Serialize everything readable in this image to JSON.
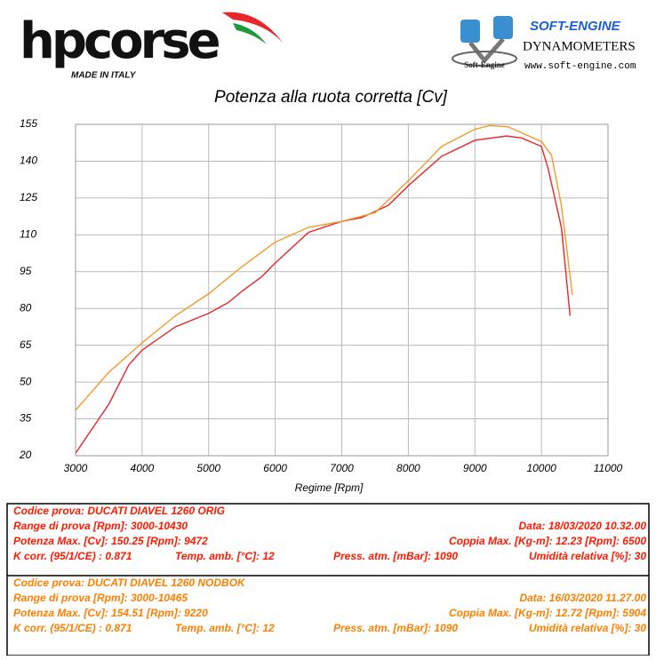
{
  "header": {
    "brand": "hpcorse",
    "brand_tagline": "MADE IN ITALY",
    "partner_logo": "SOFT-ENGINE",
    "partner_logo_small": "Soft-Engine",
    "partner_name": "DYNAMOMETERS",
    "partner_url": "www.soft-engine.com"
  },
  "chart_data": {
    "type": "line",
    "title": "Potenza alla ruota corretta [Cv]",
    "x_label": "Regime [Rpm]",
    "xlim": [
      3000,
      11000
    ],
    "xticks": [
      3000,
      4000,
      5000,
      6000,
      7000,
      8000,
      9000,
      10000,
      11000
    ],
    "ylim": [
      20,
      155
    ],
    "yticks": [
      20,
      35,
      50,
      65,
      80,
      95,
      110,
      125,
      140,
      155
    ],
    "grid": true,
    "series": [
      {
        "name": "DUCATI DIAVEL 1260 ORIG",
        "color": "#e8262b",
        "x": [
          3000,
          3500,
          3800,
          4000,
          4500,
          5000,
          5300,
          5500,
          5800,
          6000,
          6500,
          7000,
          7300,
          7700,
          8000,
          8500,
          9000,
          9472,
          9700,
          10000,
          10100,
          10300,
          10430
        ],
        "values": [
          21,
          41,
          57,
          63,
          72.5,
          78,
          82.5,
          87,
          93,
          98.5,
          111,
          115.5,
          117,
          122,
          130,
          142,
          148.5,
          150.25,
          149.5,
          146,
          137,
          113,
          77
        ]
      },
      {
        "name": "DUCATI DIAVEL 1260 NODBOK",
        "color": "#f39a2b",
        "x": [
          3000,
          3500,
          4000,
          4500,
          5000,
          5500,
          6000,
          6500,
          7000,
          7500,
          8000,
          8500,
          9000,
          9220,
          9500,
          10000,
          10150,
          10300,
          10465
        ],
        "values": [
          38.5,
          54,
          66,
          77,
          86,
          97,
          107,
          113,
          115.5,
          119,
          132,
          146,
          153,
          154.51,
          154,
          148,
          142.5,
          122,
          85.5
        ]
      }
    ]
  },
  "tests": [
    {
      "color": "#ff1a00",
      "rows": [
        [
          "Codice prova: DUCATI DIAVEL 1260 ORIG"
        ],
        [
          "Range di prova [Rpm]: 3000-10430",
          "Data: 18/03/2020   10.32.00"
        ],
        [
          "Potenza Max. [Cv]: 150.25   [Rpm]: 9472",
          "Coppia Max. [Kg-m]: 12.23   [Rpm]: 6500"
        ],
        [
          "K corr. (95/1/CE) : 0.871",
          "Temp. amb. [°C]: 12",
          "Press. atm. [mBar]: 1090",
          "Umidità relativa [%]: 30"
        ]
      ]
    },
    {
      "color": "#ff7f00",
      "rows": [
        [
          "Codice prova: DUCATI DIAVEL 1260 NODBOK"
        ],
        [
          "Range di prova [Rpm]: 3000-10465",
          "Data: 16/03/2020   11.27.00"
        ],
        [
          "Potenza Max. [Cv]: 154.51   [Rpm]: 9220",
          "Coppia Max. [Kg-m]: 12.72   [Rpm]: 5904"
        ],
        [
          "K corr. (95/1/CE) : 0.871",
          "Temp. amb. [°C]: 12",
          "Press. atm. [mBar]: 1090",
          "Umidità relativa [%]: 30"
        ]
      ]
    }
  ]
}
